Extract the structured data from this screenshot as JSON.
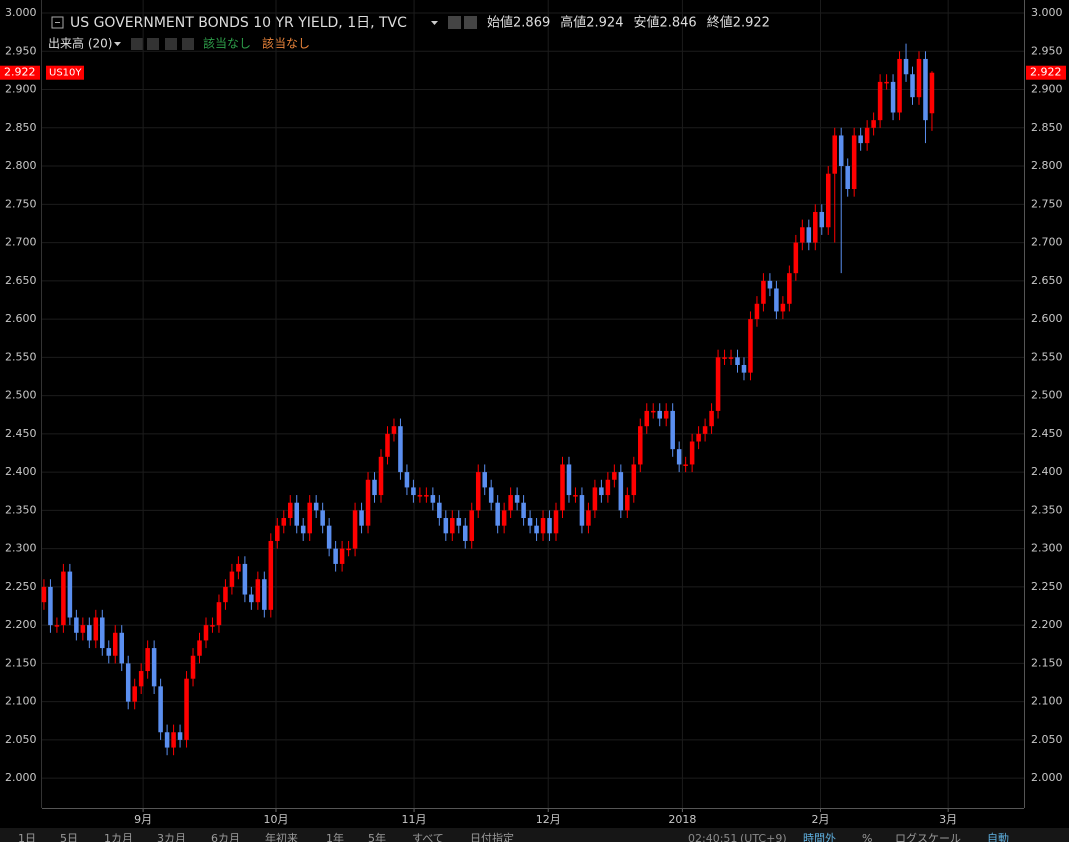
{
  "chart_data": {
    "type": "candlestick",
    "title": "US GOVERNMENT BONDS 10 YR YIELD, 1日, TVC",
    "ohlc_labels": [
      "始値",
      "高値",
      "安値",
      "終値"
    ],
    "volume_label": "出来高 (20)",
    "volume_values": [
      "該当なし",
      "該当なし"
    ],
    "symbol": "US10Y",
    "up_color": "#ff0000",
    "down_color": "#5b8ff0",
    "grid": true,
    "ylim": [
      1.961,
      3.0105
    ],
    "yticks": [
      {
        "value": 2.0,
        "label": "2.000"
      },
      {
        "value": 2.05,
        "label": "2.050"
      },
      {
        "value": 2.1,
        "label": "2.100"
      },
      {
        "value": 2.15,
        "label": "2.150"
      },
      {
        "value": 2.2,
        "label": "2.200"
      },
      {
        "value": 2.25,
        "label": "2.250"
      },
      {
        "value": 2.3,
        "label": "2.300"
      },
      {
        "value": 2.35,
        "label": "2.350"
      },
      {
        "value": 2.4,
        "label": "2.400"
      },
      {
        "value": 2.45,
        "label": "2.450"
      },
      {
        "value": 2.5,
        "label": "2.500"
      },
      {
        "value": 2.55,
        "label": "2.550"
      },
      {
        "value": 2.6,
        "label": "2.600"
      },
      {
        "value": 2.65,
        "label": "2.650"
      },
      {
        "value": 2.7,
        "label": "2.700"
      },
      {
        "value": 2.75,
        "label": "2.750"
      },
      {
        "value": 2.8,
        "label": "2.800"
      },
      {
        "value": 2.85,
        "label": "2.850"
      },
      {
        "value": 2.9,
        "label": "2.900"
      },
      {
        "value": 2.95,
        "label": "2.950"
      },
      {
        "value": 3.0,
        "label": "3.000"
      }
    ],
    "xlim": [
      -0.3,
      151.2
    ],
    "xticks": [
      {
        "value": 15.3,
        "label": "9月"
      },
      {
        "value": 35.8,
        "label": "10月"
      },
      {
        "value": 57.1,
        "label": "11月"
      },
      {
        "value": 77.8,
        "label": "12月"
      },
      {
        "value": 98.5,
        "label": "2018"
      },
      {
        "value": 119.8,
        "label": "2月"
      },
      {
        "value": 139.5,
        "label": "3月"
      }
    ],
    "open": [
      2.23,
      2.25,
      2.2,
      2.2,
      2.27,
      2.21,
      2.19,
      2.2,
      2.18,
      2.21,
      2.17,
      2.16,
      2.19,
      2.15,
      2.1,
      2.12,
      2.14,
      2.17,
      2.12,
      2.06,
      2.04,
      2.06,
      2.05,
      2.13,
      2.16,
      2.18,
      2.2,
      2.2,
      2.23,
      2.25,
      2.27,
      2.28,
      2.24,
      2.23,
      2.26,
      2.22,
      2.31,
      2.33,
      2.34,
      2.36,
      2.33,
      2.32,
      2.36,
      2.35,
      2.33,
      2.3,
      2.28,
      2.3,
      2.3,
      2.35,
      2.33,
      2.39,
      2.37,
      2.42,
      2.45,
      2.46,
      2.4,
      2.38,
      2.37,
      2.37,
      2.37,
      2.36,
      2.34,
      2.32,
      2.34,
      2.33,
      2.31,
      2.35,
      2.4,
      2.38,
      2.36,
      2.33,
      2.35,
      2.37,
      2.36,
      2.34,
      2.33,
      2.32,
      2.34,
      2.32,
      2.35,
      2.41,
      2.37,
      2.37,
      2.33,
      2.35,
      2.38,
      2.37,
      2.39,
      2.4,
      2.35,
      2.37,
      2.41,
      2.46,
      2.48,
      2.48,
      2.47,
      2.48,
      2.43,
      2.41,
      2.41,
      2.44,
      2.45,
      2.46,
      2.48,
      2.55,
      2.55,
      2.55,
      2.54,
      2.53,
      2.6,
      2.62,
      2.65,
      2.64,
      2.61,
      2.62,
      2.66,
      2.7,
      2.72,
      2.7,
      2.74,
      2.72,
      2.79,
      2.84,
      2.8,
      2.77,
      2.84,
      2.83,
      2.85,
      2.86,
      2.91,
      2.91,
      2.87,
      2.94,
      2.92,
      2.89,
      2.94,
      2.869
    ],
    "high": [
      2.26,
      2.26,
      2.21,
      2.28,
      2.28,
      2.22,
      2.21,
      2.21,
      2.22,
      2.22,
      2.18,
      2.2,
      2.2,
      2.16,
      2.13,
      2.15,
      2.18,
      2.18,
      2.13,
      2.07,
      2.07,
      2.07,
      2.14,
      2.17,
      2.19,
      2.21,
      2.21,
      2.24,
      2.26,
      2.28,
      2.29,
      2.29,
      2.25,
      2.27,
      2.27,
      2.32,
      2.34,
      2.35,
      2.37,
      2.37,
      2.34,
      2.37,
      2.37,
      2.36,
      2.34,
      2.31,
      2.31,
      2.31,
      2.36,
      2.36,
      2.4,
      2.4,
      2.43,
      2.46,
      2.47,
      2.47,
      2.41,
      2.39,
      2.38,
      2.38,
      2.38,
      2.37,
      2.35,
      2.35,
      2.35,
      2.34,
      2.36,
      2.41,
      2.41,
      2.39,
      2.37,
      2.36,
      2.38,
      2.38,
      2.37,
      2.35,
      2.34,
      2.35,
      2.35,
      2.36,
      2.42,
      2.42,
      2.38,
      2.38,
      2.36,
      2.39,
      2.39,
      2.4,
      2.41,
      2.41,
      2.38,
      2.42,
      2.47,
      2.49,
      2.49,
      2.49,
      2.49,
      2.49,
      2.44,
      2.42,
      2.45,
      2.46,
      2.47,
      2.49,
      2.56,
      2.56,
      2.56,
      2.56,
      2.55,
      2.61,
      2.63,
      2.66,
      2.66,
      2.65,
      2.63,
      2.67,
      2.71,
      2.73,
      2.73,
      2.75,
      2.75,
      2.8,
      2.85,
      2.85,
      2.81,
      2.85,
      2.85,
      2.86,
      2.87,
      2.92,
      2.92,
      2.92,
      2.95,
      2.96,
      2.93,
      2.95,
      2.95,
      2.924
    ],
    "low": [
      2.22,
      2.19,
      2.19,
      2.19,
      2.2,
      2.18,
      2.18,
      2.17,
      2.17,
      2.16,
      2.15,
      2.15,
      2.14,
      2.09,
      2.09,
      2.11,
      2.13,
      2.11,
      2.05,
      2.03,
      2.03,
      2.04,
      2.04,
      2.12,
      2.15,
      2.17,
      2.19,
      2.19,
      2.22,
      2.24,
      2.26,
      2.23,
      2.22,
      2.22,
      2.21,
      2.21,
      2.3,
      2.32,
      2.33,
      2.32,
      2.31,
      2.31,
      2.34,
      2.32,
      2.29,
      2.27,
      2.27,
      2.29,
      2.29,
      2.32,
      2.32,
      2.36,
      2.36,
      2.41,
      2.44,
      2.39,
      2.37,
      2.36,
      2.36,
      2.36,
      2.35,
      2.33,
      2.31,
      2.31,
      2.32,
      2.3,
      2.3,
      2.34,
      2.37,
      2.35,
      2.32,
      2.32,
      2.34,
      2.35,
      2.33,
      2.32,
      2.31,
      2.31,
      2.31,
      2.31,
      2.34,
      2.36,
      2.36,
      2.32,
      2.32,
      2.34,
      2.36,
      2.36,
      2.38,
      2.34,
      2.34,
      2.36,
      2.4,
      2.45,
      2.47,
      2.46,
      2.46,
      2.42,
      2.4,
      2.4,
      2.4,
      2.43,
      2.44,
      2.45,
      2.47,
      2.54,
      2.54,
      2.53,
      2.52,
      2.52,
      2.59,
      2.61,
      2.63,
      2.6,
      2.6,
      2.61,
      2.65,
      2.69,
      2.69,
      2.69,
      2.71,
      2.71,
      2.7,
      2.66,
      2.76,
      2.76,
      2.82,
      2.82,
      2.84,
      2.85,
      2.9,
      2.86,
      2.86,
      2.91,
      2.88,
      2.88,
      2.83,
      2.846
    ],
    "close": [
      2.25,
      2.2,
      2.2,
      2.27,
      2.21,
      2.19,
      2.2,
      2.18,
      2.21,
      2.17,
      2.16,
      2.19,
      2.15,
      2.1,
      2.12,
      2.14,
      2.17,
      2.12,
      2.06,
      2.04,
      2.06,
      2.05,
      2.13,
      2.16,
      2.18,
      2.2,
      2.2,
      2.23,
      2.25,
      2.27,
      2.28,
      2.24,
      2.23,
      2.26,
      2.22,
      2.31,
      2.33,
      2.34,
      2.36,
      2.33,
      2.32,
      2.36,
      2.35,
      2.33,
      2.3,
      2.28,
      2.3,
      2.3,
      2.35,
      2.33,
      2.39,
      2.37,
      2.42,
      2.45,
      2.46,
      2.4,
      2.38,
      2.37,
      2.37,
      2.37,
      2.36,
      2.34,
      2.32,
      2.34,
      2.33,
      2.31,
      2.35,
      2.4,
      2.38,
      2.36,
      2.33,
      2.35,
      2.37,
      2.36,
      2.34,
      2.33,
      2.32,
      2.34,
      2.32,
      2.35,
      2.41,
      2.37,
      2.37,
      2.33,
      2.35,
      2.38,
      2.37,
      2.39,
      2.4,
      2.35,
      2.37,
      2.41,
      2.46,
      2.48,
      2.48,
      2.47,
      2.48,
      2.43,
      2.41,
      2.41,
      2.44,
      2.45,
      2.46,
      2.48,
      2.55,
      2.55,
      2.55,
      2.54,
      2.53,
      2.6,
      2.62,
      2.65,
      2.64,
      2.61,
      2.62,
      2.66,
      2.7,
      2.72,
      2.7,
      2.74,
      2.72,
      2.79,
      2.84,
      2.8,
      2.77,
      2.84,
      2.83,
      2.85,
      2.86,
      2.91,
      2.91,
      2.87,
      2.94,
      2.92,
      2.89,
      2.94,
      2.86,
      2.922
    ],
    "toolbar": [
      "1日",
      "5日",
      "1カ月",
      "3カ月",
      "6カ月",
      "年初来",
      "1年",
      "5年",
      "すべて",
      "日付指定"
    ],
    "clock": "02:40:51",
    "timezone": "(UTC+9)",
    "session": "時間外",
    "percent": "%",
    "log_scale": "ログスケール",
    "auto": "自動"
  }
}
